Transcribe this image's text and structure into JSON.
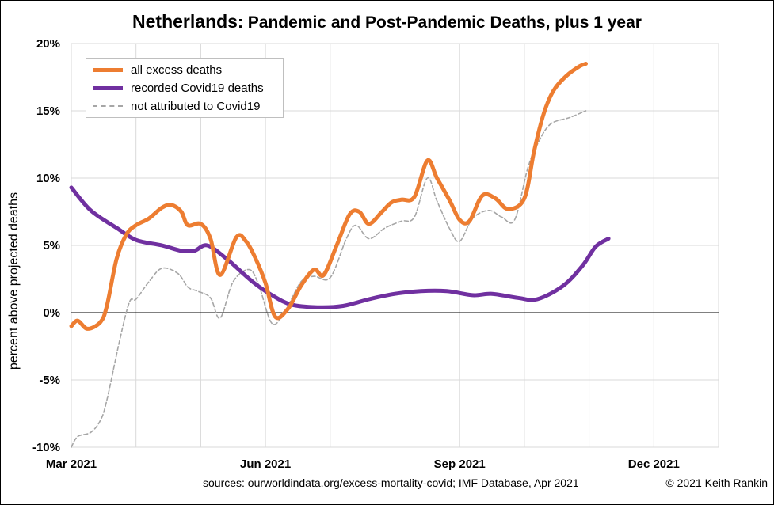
{
  "title": {
    "country": "Netherlands",
    "rest": ": Pandemic and Post-Pandemic Deaths, plus 1 year"
  },
  "footer": {
    "sources": "sources:  ourworldindata.org/excess-mortality-covid;  IMF Database, Apr 2021",
    "credit": "© 2021 Keith Rankin"
  },
  "chart_data": {
    "type": "line",
    "title": "Netherlands: Pandemic and Post-Pandemic Deaths, plus 1 year",
    "ylabel": "percent above projected deaths",
    "ylim": [
      -10,
      20
    ],
    "yticks": [
      -10,
      -5,
      0,
      5,
      10,
      15,
      20
    ],
    "ytick_labels": [
      "-10%",
      "-5%",
      "0%",
      "5%",
      "10%",
      "15%",
      "20%"
    ],
    "xlim": [
      0,
      10
    ],
    "xticks": [
      0,
      1,
      2,
      3,
      4,
      5,
      6,
      7,
      8,
      9,
      10
    ],
    "xtick_labels": [
      {
        "x": 0,
        "label": "Mar 2021"
      },
      {
        "x": 3,
        "label": "Jun 2021"
      },
      {
        "x": 6,
        "label": "Sep 2021"
      },
      {
        "x": 9,
        "label": "Dec 2021"
      }
    ],
    "x_unit_note": "months from 1 Mar 2021",
    "legend_position": "top-left",
    "grid": true,
    "series": [
      {
        "name": "all excess deaths",
        "color": "#ed7d31",
        "style": "solid",
        "x": [
          0,
          0.1,
          0.25,
          0.45,
          0.55,
          0.7,
          0.85,
          1.0,
          1.2,
          1.4,
          1.55,
          1.7,
          1.8,
          2.0,
          2.15,
          2.3,
          2.55,
          2.7,
          2.85,
          3.0,
          3.15,
          3.35,
          3.55,
          3.75,
          3.9,
          4.1,
          4.3,
          4.45,
          4.6,
          4.8,
          4.95,
          5.1,
          5.3,
          5.5,
          5.65,
          5.85,
          6.0,
          6.15,
          6.35,
          6.55,
          6.75,
          7.0,
          7.15,
          7.3,
          7.45,
          7.65,
          7.85,
          7.95
        ],
        "values": [
          -1.0,
          -0.6,
          -1.2,
          -0.7,
          0.5,
          4.0,
          5.8,
          6.5,
          7.0,
          7.8,
          8.0,
          7.5,
          6.5,
          6.6,
          5.5,
          2.8,
          5.6,
          5.3,
          4.0,
          2.2,
          -0.3,
          0.3,
          2.0,
          3.2,
          2.8,
          5.0,
          7.3,
          7.5,
          6.6,
          7.5,
          8.2,
          8.4,
          8.6,
          11.3,
          10.0,
          8.3,
          6.9,
          6.8,
          8.7,
          8.5,
          7.7,
          8.5,
          12.0,
          14.8,
          16.5,
          17.6,
          18.3,
          18.5
        ]
      },
      {
        "name": "recorded Covid19 deaths",
        "color": "#7030a0",
        "style": "solid",
        "x": [
          0,
          0.3,
          0.7,
          1.0,
          1.4,
          1.7,
          1.9,
          2.1,
          2.4,
          2.8,
          3.1,
          3.4,
          3.8,
          4.2,
          4.6,
          5.0,
          5.4,
          5.8,
          6.2,
          6.5,
          6.9,
          7.2,
          7.6,
          7.9,
          8.1,
          8.3
        ],
        "values": [
          9.3,
          7.6,
          6.3,
          5.4,
          5.0,
          4.6,
          4.6,
          5.0,
          4.0,
          2.3,
          1.3,
          0.6,
          0.4,
          0.5,
          1.0,
          1.4,
          1.6,
          1.6,
          1.3,
          1.4,
          1.1,
          1.0,
          2.0,
          3.5,
          4.9,
          5.5
        ]
      },
      {
        "name": "not attributed to Covid19",
        "color": "#a6a6a6",
        "style": "dashed",
        "x": [
          0,
          0.1,
          0.3,
          0.45,
          0.55,
          0.75,
          0.9,
          1.0,
          1.2,
          1.4,
          1.65,
          1.8,
          1.95,
          2.15,
          2.3,
          2.5,
          2.75,
          2.9,
          3.1,
          3.3,
          3.55,
          3.75,
          4.0,
          4.25,
          4.4,
          4.6,
          4.85,
          5.1,
          5.3,
          5.5,
          5.65,
          5.85,
          6.0,
          6.2,
          6.45,
          6.65,
          6.85,
          7.05,
          7.2,
          7.4,
          7.7,
          7.95
        ],
        "values": [
          -10.0,
          -9.2,
          -8.9,
          -8.0,
          -6.5,
          -2.0,
          0.8,
          1.0,
          2.3,
          3.3,
          2.9,
          1.9,
          1.6,
          1.1,
          -0.4,
          2.3,
          3.2,
          2.0,
          -0.8,
          0.1,
          2.3,
          2.7,
          2.6,
          5.5,
          6.5,
          5.5,
          6.3,
          6.8,
          7.1,
          10.0,
          8.3,
          6.2,
          5.3,
          7.0,
          7.6,
          7.1,
          6.9,
          10.7,
          12.5,
          14.0,
          14.5,
          15.0
        ]
      }
    ]
  }
}
